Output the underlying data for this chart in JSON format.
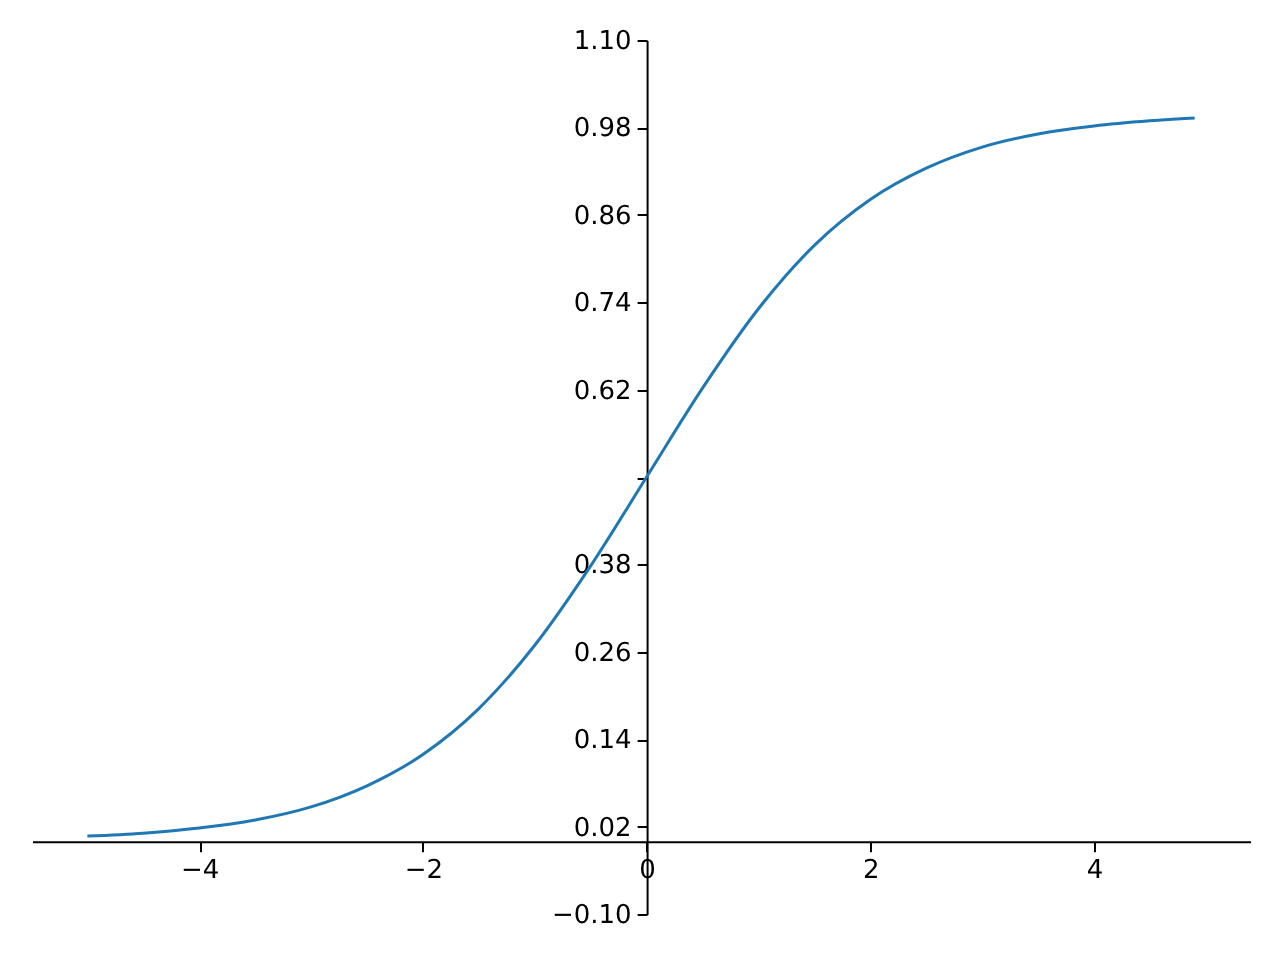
{
  "chart_data": {
    "type": "line",
    "x": [
      -5,
      -4.5,
      -4,
      -3.5,
      -3,
      -2.5,
      -2,
      -1.5,
      -1,
      -0.5,
      0,
      0.5,
      1,
      1.5,
      2,
      2.5,
      3,
      3.5,
      4,
      4.5,
      4.9
    ],
    "series": [
      {
        "color": "#1f77b4",
        "values": [
          0.007,
          0.011,
          0.018,
          0.029,
          0.047,
          0.076,
          0.119,
          0.182,
          0.269,
          0.378,
          0.5,
          0.622,
          0.731,
          0.818,
          0.881,
          0.924,
          0.953,
          0.971,
          0.982,
          0.989,
          0.993
        ]
      }
    ],
    "xlim": [
      -5.495,
      5.395
    ],
    "xticks": [
      {
        "value": -4,
        "label": "−4"
      },
      {
        "value": -2,
        "label": "−2"
      },
      0,
      2,
      4
    ],
    "ylim": [
      -0.1,
      1.1
    ],
    "yticks": [
      {
        "value": -0.1,
        "label": "−0.10"
      },
      {
        "value": 0.02,
        "label": "0.02"
      },
      {
        "value": 0.14,
        "label": "0.14"
      },
      {
        "value": 0.26,
        "label": "0.26"
      },
      {
        "value": 0.38,
        "label": "0.38"
      },
      {
        "value": 0.5,
        "label": null
      },
      {
        "value": 0.62,
        "label": "0.62"
      },
      {
        "value": 0.74,
        "label": "0.74"
      },
      {
        "value": 0.86,
        "label": "0.86"
      },
      {
        "value": 0.98,
        "label": "0.98"
      },
      {
        "value": 1.1,
        "label": "1.10"
      }
    ],
    "grid": false
  }
}
